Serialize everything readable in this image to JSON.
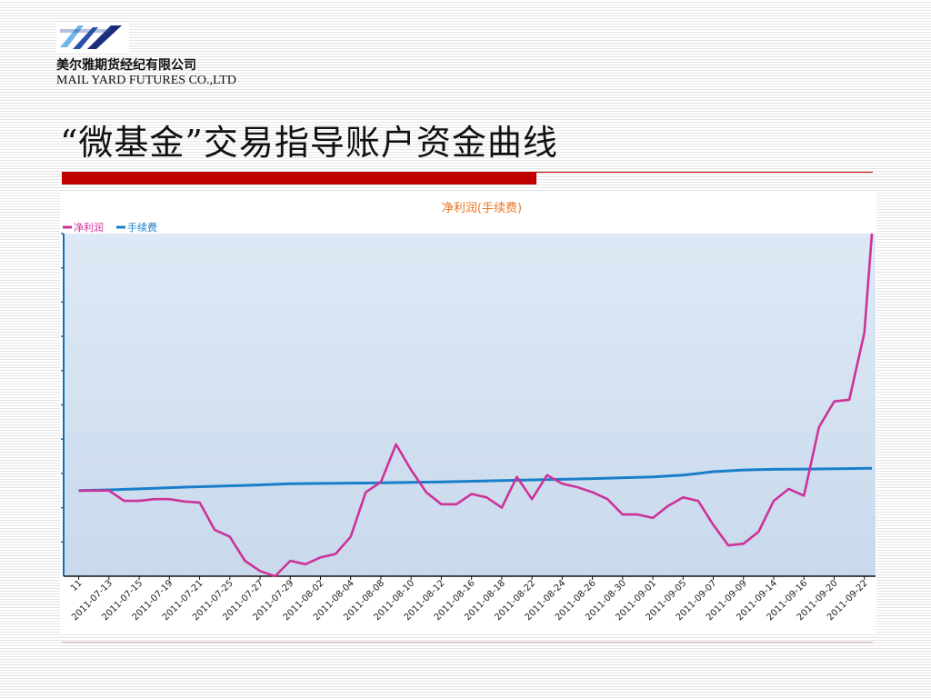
{
  "header": {
    "company_cn": "美尔雅期货经纪有限公司",
    "company_en": "MAIL YARD FUTURES CO.,LTD",
    "slide_title": "“微基金”交易指导账户资金曲线"
  },
  "colors": {
    "accent_red": "#c00000",
    "net_profit": "#cc3399",
    "fee": "#1a7fc9",
    "title_orange": "#e87722",
    "plot_bg_top": "#dde9f5",
    "plot_bg_bottom": "#c9d9ec"
  },
  "chart_data": {
    "type": "line",
    "title": "净利润(手续费)",
    "legend_placement": "top-left",
    "grid": false,
    "xlabel": "",
    "ylabel": "",
    "x_tick_labels": [
      "11",
      "2011-07-13",
      "2011-07-15",
      "2011-07-19",
      "2011-07-21",
      "2011-07-25",
      "2011-07-27",
      "2011-07-29",
      "2011-08-02",
      "2011-08-04",
      "2011-08-08",
      "2011-08-10",
      "2011-08-12",
      "2011-08-16",
      "2011-08-18",
      "2011-08-22",
      "2011-08-24",
      "2011-08-26",
      "2011-08-30",
      "2011-09-01",
      "2011-09-05",
      "2011-09-07",
      "2011-09-09",
      "2011-09-14",
      "2011-09-16",
      "2011-09-20",
      "2011-09-22"
    ],
    "x_range": [
      0,
      53.5
    ],
    "y_range": [
      0,
      100
    ],
    "series": [
      {
        "name": "净利润",
        "values": [
          [
            1,
            25
          ],
          [
            3,
            25
          ],
          [
            4,
            22
          ],
          [
            5,
            22
          ],
          [
            6,
            22.5
          ],
          [
            7,
            22.5
          ],
          [
            8,
            21.8
          ],
          [
            9,
            21.5
          ],
          [
            10,
            13.5
          ],
          [
            11,
            11.5
          ],
          [
            12,
            4.5
          ],
          [
            13,
            1.5
          ],
          [
            14,
            0
          ],
          [
            15,
            4.5
          ],
          [
            16,
            3.5
          ],
          [
            17,
            5.5
          ],
          [
            18,
            6.5
          ],
          [
            19,
            11.5
          ],
          [
            20,
            24.5
          ],
          [
            21,
            27.5
          ],
          [
            22,
            38.5
          ],
          [
            23,
            31
          ],
          [
            24,
            24.5
          ],
          [
            25,
            21
          ],
          [
            26,
            21
          ],
          [
            27,
            24
          ],
          [
            28,
            23
          ],
          [
            29,
            20
          ],
          [
            30,
            29
          ],
          [
            31,
            22.5
          ],
          [
            32,
            29.5
          ],
          [
            33,
            27
          ],
          [
            34,
            26
          ],
          [
            35,
            24.5
          ],
          [
            36,
            22.5
          ],
          [
            37,
            18
          ],
          [
            38,
            18
          ],
          [
            39,
            17
          ],
          [
            40,
            20.5
          ],
          [
            41,
            23
          ],
          [
            42,
            22
          ],
          [
            43,
            15
          ],
          [
            44,
            9
          ],
          [
            45,
            9.5
          ],
          [
            46,
            13
          ],
          [
            47,
            22
          ],
          [
            48,
            25.5
          ],
          [
            49,
            23.5
          ],
          [
            50,
            43.5
          ],
          [
            51,
            51
          ],
          [
            52,
            51.5
          ],
          [
            53,
            71
          ],
          [
            53.5,
            100
          ]
        ]
      },
      {
        "name": "手续费",
        "values": [
          [
            1,
            25
          ],
          [
            3,
            25.2
          ],
          [
            5,
            25.5
          ],
          [
            8,
            26
          ],
          [
            12,
            26.5
          ],
          [
            15,
            27
          ],
          [
            20,
            27.2
          ],
          [
            25,
            27.5
          ],
          [
            30,
            28
          ],
          [
            35,
            28.5
          ],
          [
            39,
            29
          ],
          [
            41,
            29.5
          ],
          [
            43,
            30.5
          ],
          [
            45,
            31
          ],
          [
            47,
            31.2
          ],
          [
            50,
            31.3
          ],
          [
            53.5,
            31.5
          ]
        ]
      }
    ]
  }
}
